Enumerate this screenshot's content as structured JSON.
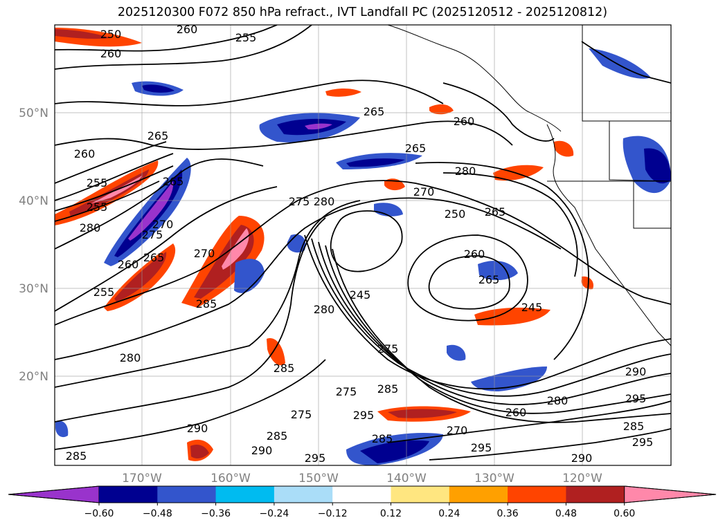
{
  "title": "2025120300 F072 850 hPa refract., IVT Landfall PC (2025120512 - 2025120812)",
  "lat_labels": [
    "50°N",
    "40°N",
    "30°N",
    "20°N"
  ],
  "lon_labels": [
    "170°W",
    "160°W",
    "150°W",
    "140°W",
    "130°W",
    "120°W"
  ],
  "colorbar": {
    "ticks": [
      "−0.60",
      "−0.48",
      "−0.36",
      "−0.24",
      "−0.12",
      "0.12",
      "0.24",
      "0.36",
      "0.48",
      "0.60"
    ],
    "colors": [
      "#9933cc",
      "#000090",
      "#3355cc",
      "#00bbf0",
      "#aaddf8",
      "#ffffff",
      "#ffe680",
      "#ffa000",
      "#ff4400",
      "#b02020",
      "#ff88aa"
    ]
  },
  "contour_labels": [
    "250",
    "260",
    "255",
    "260",
    "265",
    "265",
    "260",
    "265",
    "260",
    "255",
    "265",
    "280",
    "270",
    "250",
    "265",
    "275",
    "280",
    "270",
    "255",
    "280",
    "275",
    "260",
    "270",
    "260",
    "265",
    "245",
    "245",
    "265",
    "285",
    "255",
    "280",
    "275",
    "280",
    "260",
    "285",
    "285",
    "290",
    "295",
    "280",
    "270",
    "290",
    "285",
    "275",
    "295",
    "285",
    "290",
    "295",
    "290",
    "295",
    "285",
    "275",
    "295",
    "285"
  ]
}
